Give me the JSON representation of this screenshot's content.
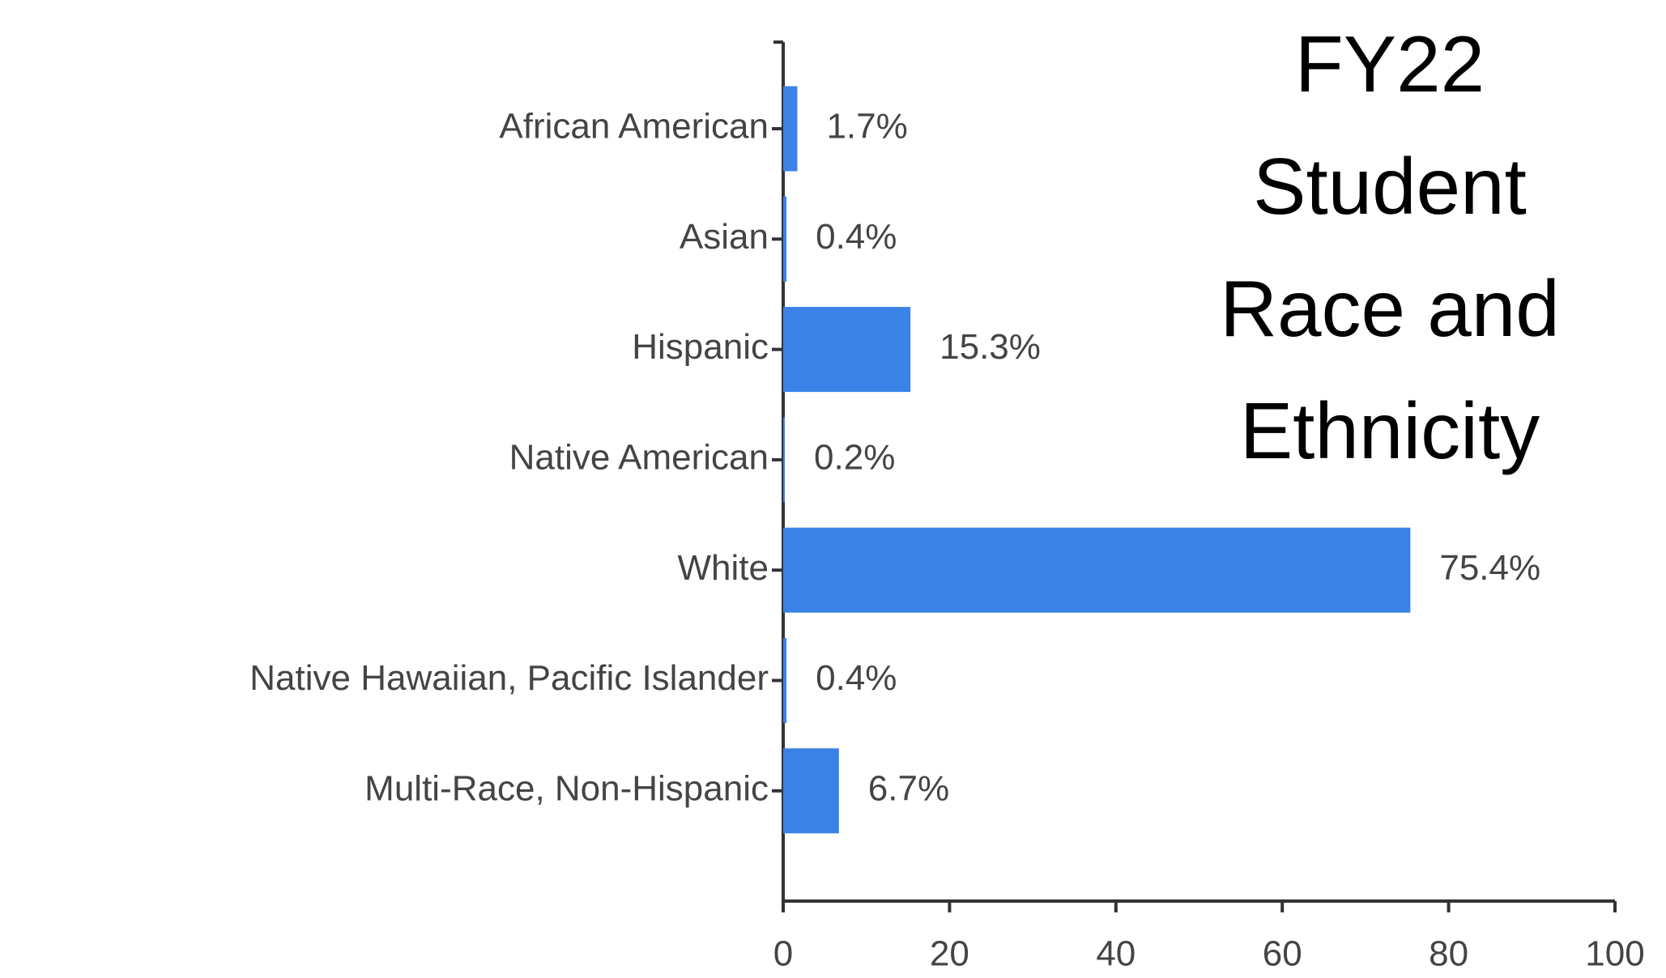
{
  "chart_data": {
    "type": "bar",
    "orientation": "horizontal",
    "title": "FY22 Student Race and Ethnicity",
    "categories": [
      "African American",
      "Asian",
      "Hispanic",
      "Native American",
      "White",
      "Native Hawaiian, Pacific Islander",
      "Multi-Race, Non-Hispanic"
    ],
    "values": [
      1.7,
      0.4,
      15.3,
      0.2,
      75.4,
      0.4,
      6.7
    ],
    "value_labels": [
      "1.7%",
      "0.4%",
      "15.3%",
      "0.2%",
      "75.4%",
      "0.4%",
      "6.7%"
    ],
    "color": "#3b82e6",
    "xlim": [
      0,
      100
    ],
    "xticks": [
      0,
      20,
      40,
      60,
      80,
      100
    ]
  }
}
